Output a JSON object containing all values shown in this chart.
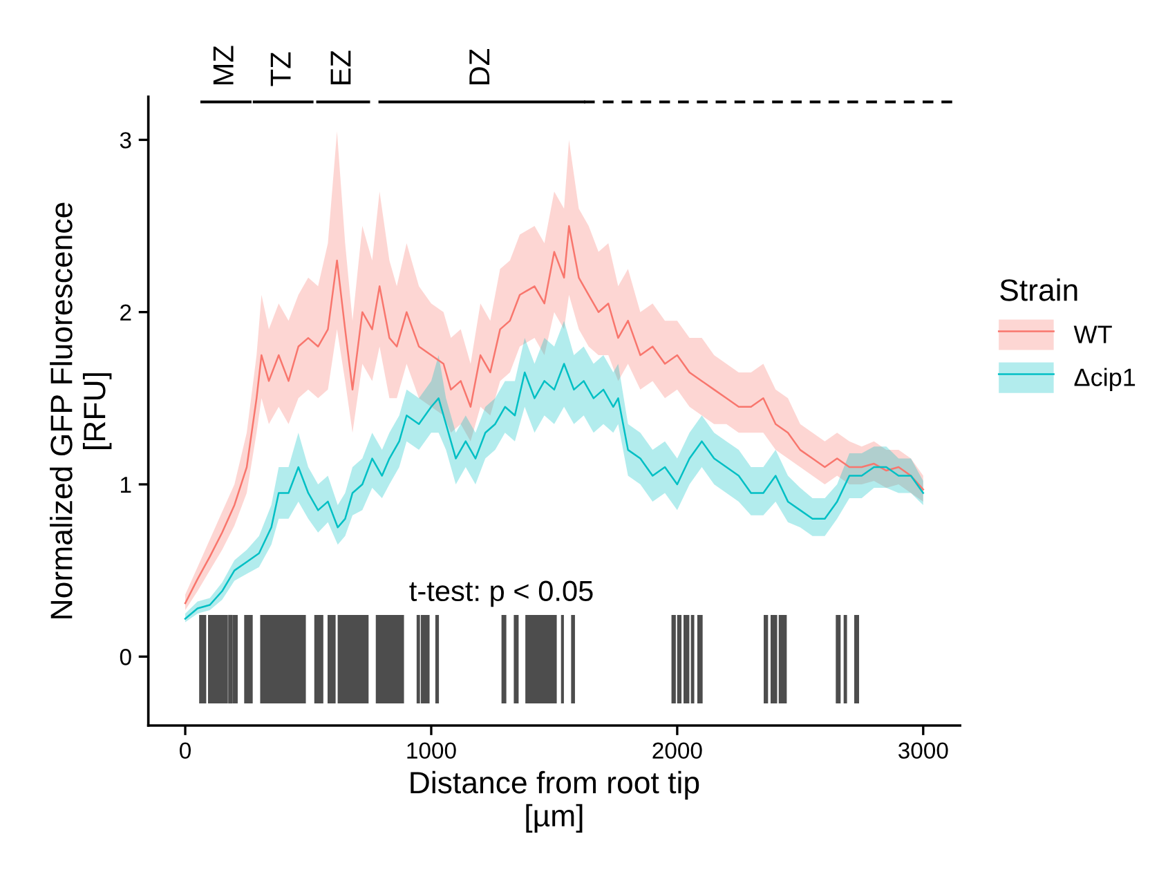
{
  "chart_data": {
    "type": "line",
    "xlabel": "Distance from root tip\n[µm]",
    "ylabel": "Normalized GFP Fluorescence\n[RFU]",
    "legend_title": "Strain",
    "xlim": [
      -150,
      3150
    ],
    "ylim": [
      -0.4,
      3.25
    ],
    "xticks": [
      0,
      1000,
      2000,
      3000
    ],
    "yticks": [
      0,
      1,
      2,
      3
    ],
    "grid": false,
    "legend": "right",
    "series": [
      {
        "name": "WT",
        "color": "#f8766d",
        "x": [
          0,
          50,
          100,
          150,
          200,
          250,
          290,
          310,
          340,
          380,
          420,
          460,
          500,
          540,
          580,
          617,
          650,
          680,
          720,
          760,
          790,
          830,
          860,
          900,
          950,
          1000,
          1050,
          1080,
          1120,
          1160,
          1200,
          1240,
          1280,
          1320,
          1360,
          1420,
          1460,
          1500,
          1540,
          1560,
          1600,
          1640,
          1680,
          1720,
          1760,
          1800,
          1850,
          1900,
          1950,
          2000,
          2050,
          2100,
          2150,
          2200,
          2250,
          2300,
          2350,
          2400,
          2450,
          2500,
          2550,
          2600,
          2650,
          2700,
          2750,
          2800,
          2850,
          2900,
          2950,
          3000
        ],
        "values": [
          0.31,
          0.45,
          0.58,
          0.72,
          0.88,
          1.1,
          1.5,
          1.75,
          1.6,
          1.75,
          1.6,
          1.8,
          1.85,
          1.8,
          1.9,
          2.3,
          1.9,
          1.55,
          2.0,
          1.9,
          2.15,
          1.85,
          1.8,
          2.0,
          1.8,
          1.75,
          1.7,
          1.55,
          1.6,
          1.45,
          1.75,
          1.65,
          1.9,
          1.95,
          2.1,
          2.15,
          2.05,
          2.35,
          2.2,
          2.5,
          2.2,
          2.1,
          2.0,
          2.05,
          1.85,
          1.95,
          1.75,
          1.8,
          1.7,
          1.75,
          1.65,
          1.6,
          1.55,
          1.5,
          1.45,
          1.45,
          1.5,
          1.35,
          1.3,
          1.2,
          1.15,
          1.1,
          1.15,
          1.1,
          1.1,
          1.12,
          1.08,
          1.1,
          1.05,
          0.97
        ],
        "lower": [
          0.27,
          0.38,
          0.5,
          0.62,
          0.76,
          0.95,
          1.3,
          1.5,
          1.35,
          1.45,
          1.35,
          1.5,
          1.55,
          1.5,
          1.55,
          1.9,
          1.6,
          1.3,
          1.7,
          1.6,
          1.8,
          1.5,
          1.5,
          1.7,
          1.5,
          1.45,
          1.4,
          1.3,
          1.35,
          1.25,
          1.45,
          1.4,
          1.6,
          1.65,
          1.8,
          1.85,
          1.75,
          2.0,
          1.9,
          2.1,
          1.9,
          1.8,
          1.75,
          1.75,
          1.6,
          1.7,
          1.55,
          1.6,
          1.5,
          1.55,
          1.45,
          1.4,
          1.35,
          1.35,
          1.3,
          1.3,
          1.3,
          1.2,
          1.15,
          1.1,
          1.05,
          1.0,
          1.05,
          1.0,
          1.0,
          1.02,
          0.98,
          1.0,
          0.95,
          0.9
        ],
        "upper": [
          0.36,
          0.52,
          0.68,
          0.84,
          1.0,
          1.3,
          1.75,
          2.1,
          1.9,
          2.05,
          1.95,
          2.1,
          2.2,
          2.15,
          2.4,
          3.05,
          2.4,
          1.95,
          2.5,
          2.3,
          2.7,
          2.3,
          2.15,
          2.4,
          2.15,
          2.05,
          2.0,
          1.85,
          1.9,
          1.7,
          2.05,
          1.95,
          2.25,
          2.3,
          2.45,
          2.5,
          2.4,
          2.7,
          2.6,
          3.0,
          2.6,
          2.5,
          2.35,
          2.4,
          2.15,
          2.25,
          2.0,
          2.05,
          1.95,
          1.95,
          1.85,
          1.85,
          1.75,
          1.7,
          1.65,
          1.65,
          1.7,
          1.55,
          1.5,
          1.35,
          1.3,
          1.25,
          1.3,
          1.25,
          1.22,
          1.25,
          1.2,
          1.2,
          1.15,
          1.05
        ]
      },
      {
        "name": "Δcip1",
        "color": "#00bfc4",
        "x": [
          0,
          50,
          100,
          150,
          200,
          250,
          300,
          350,
          380,
          420,
          460,
          500,
          540,
          580,
          620,
          650,
          680,
          720,
          760,
          800,
          830,
          870,
          900,
          950,
          1000,
          1030,
          1060,
          1100,
          1140,
          1180,
          1220,
          1260,
          1300,
          1340,
          1380,
          1420,
          1460,
          1500,
          1540,
          1580,
          1620,
          1660,
          1700,
          1740,
          1760,
          1800,
          1850,
          1900,
          1950,
          2000,
          2050,
          2100,
          2150,
          2200,
          2250,
          2300,
          2350,
          2400,
          2450,
          2500,
          2550,
          2600,
          2650,
          2700,
          2750,
          2800,
          2850,
          2900,
          2950,
          3000
        ],
        "values": [
          0.22,
          0.28,
          0.3,
          0.38,
          0.5,
          0.55,
          0.6,
          0.75,
          0.95,
          0.95,
          1.1,
          0.95,
          0.85,
          0.9,
          0.75,
          0.8,
          0.95,
          1.0,
          1.15,
          1.05,
          1.15,
          1.25,
          1.4,
          1.35,
          1.45,
          1.5,
          1.35,
          1.15,
          1.25,
          1.15,
          1.3,
          1.35,
          1.45,
          1.4,
          1.65,
          1.5,
          1.6,
          1.55,
          1.7,
          1.55,
          1.6,
          1.5,
          1.55,
          1.45,
          1.5,
          1.2,
          1.15,
          1.05,
          1.1,
          1.0,
          1.15,
          1.25,
          1.15,
          1.1,
          1.05,
          0.95,
          0.95,
          1.05,
          0.9,
          0.85,
          0.8,
          0.8,
          0.9,
          1.05,
          1.05,
          1.1,
          1.1,
          1.05,
          1.05,
          0.95
        ],
        "lower": [
          0.2,
          0.25,
          0.27,
          0.33,
          0.44,
          0.48,
          0.52,
          0.65,
          0.8,
          0.8,
          0.9,
          0.8,
          0.72,
          0.78,
          0.65,
          0.7,
          0.82,
          0.85,
          0.98,
          0.92,
          1.0,
          1.1,
          1.25,
          1.2,
          1.3,
          1.3,
          1.2,
          1.0,
          1.1,
          1.0,
          1.15,
          1.2,
          1.3,
          1.25,
          1.45,
          1.3,
          1.4,
          1.35,
          1.45,
          1.35,
          1.4,
          1.3,
          1.35,
          1.3,
          1.35,
          1.05,
          1.0,
          0.9,
          0.95,
          0.85,
          1.0,
          1.1,
          1.0,
          0.95,
          0.9,
          0.82,
          0.82,
          0.9,
          0.78,
          0.75,
          0.7,
          0.7,
          0.8,
          0.92,
          0.92,
          0.98,
          0.98,
          0.95,
          0.95,
          0.88
        ],
        "upper": [
          0.25,
          0.32,
          0.34,
          0.43,
          0.56,
          0.62,
          0.7,
          0.88,
          1.1,
          1.1,
          1.3,
          1.1,
          1.0,
          1.05,
          0.88,
          0.95,
          1.1,
          1.15,
          1.3,
          1.2,
          1.3,
          1.4,
          1.55,
          1.5,
          1.6,
          1.75,
          1.5,
          1.3,
          1.4,
          1.3,
          1.45,
          1.5,
          1.6,
          1.6,
          1.85,
          1.7,
          1.85,
          1.8,
          1.95,
          1.75,
          1.8,
          1.7,
          1.75,
          1.65,
          1.7,
          1.35,
          1.3,
          1.2,
          1.25,
          1.15,
          1.3,
          1.4,
          1.3,
          1.25,
          1.2,
          1.1,
          1.1,
          1.2,
          1.05,
          0.98,
          0.92,
          0.92,
          1.0,
          1.18,
          1.18,
          1.22,
          1.22,
          1.15,
          1.15,
          1.02
        ]
      },
      {
        "type": "line",
        "color": "#000000",
        "line_style": "solid",
        "x": [
          67,
          264
        ],
        "values": [
          3.22,
          3.22
        ]
      },
      {
        "type": "line",
        "color": "#000000",
        "line_style": "solid",
        "x": [
          280,
          516
        ],
        "values": [
          3.22,
          3.22
        ]
      },
      {
        "type": "line",
        "color": "#000000",
        "line_style": "solid",
        "x": [
          538,
          746
        ],
        "values": [
          3.22,
          3.22
        ]
      },
      {
        "type": "line",
        "color": "#000000",
        "line_style": "solid",
        "x": [
          791,
          1621
        ],
        "values": [
          3.22,
          3.22
        ]
      },
      {
        "type": "line",
        "color": "#000000",
        "line_style": "dashed",
        "x": [
          1621,
          3150
        ],
        "values": [
          3.22,
          3.22
        ]
      }
    ],
    "annotations": [
      {
        "text": "MZ",
        "x": 165,
        "y": 3.22
      },
      {
        "text": "TZ",
        "x": 398,
        "y": 3.22
      },
      {
        "text": "EZ",
        "x": 642,
        "y": 3.22
      },
      {
        "text": "DZ",
        "x": 1206,
        "y": 3.22
      },
      "t-test: p < 0.05"
    ],
    "bands": [
      {
        "axis": "x",
        "from": 59,
        "to": 83,
        "color": "#4d4d4d"
      },
      {
        "axis": "x",
        "from": 95,
        "to": 171,
        "color": "#4d4d4d"
      },
      {
        "axis": "x",
        "from": 177,
        "to": 181,
        "color": "#4d4d4d"
      },
      {
        "axis": "x",
        "from": 185,
        "to": 189,
        "color": "#4d4d4d"
      },
      {
        "axis": "x",
        "from": 194,
        "to": 211,
        "color": "#4d4d4d"
      },
      {
        "axis": "x",
        "from": 242,
        "to": 272,
        "color": "#4d4d4d"
      },
      {
        "axis": "x",
        "from": 307,
        "to": 488,
        "color": "#4d4d4d"
      },
      {
        "axis": "x",
        "from": 527,
        "to": 559,
        "color": "#4d4d4d"
      },
      {
        "axis": "x",
        "from": 581,
        "to": 609,
        "color": "#4d4d4d"
      },
      {
        "axis": "x",
        "from": 622,
        "to": 743,
        "color": "#4d4d4d"
      },
      {
        "axis": "x",
        "from": 777,
        "to": 887,
        "color": "#4d4d4d"
      },
      {
        "axis": "x",
        "from": 943,
        "to": 952,
        "color": "#4d4d4d"
      },
      {
        "axis": "x",
        "from": 960,
        "to": 991,
        "color": "#4d4d4d"
      },
      {
        "axis": "x",
        "from": 1019,
        "to": 1029,
        "color": "#4d4d4d"
      },
      {
        "axis": "x",
        "from": 1288,
        "to": 1303,
        "color": "#4d4d4d"
      },
      {
        "axis": "x",
        "from": 1338,
        "to": 1353,
        "color": "#4d4d4d"
      },
      {
        "axis": "x",
        "from": 1385,
        "to": 1508,
        "color": "#4d4d4d"
      },
      {
        "axis": "x",
        "from": 1530,
        "to": 1537,
        "color": "#4d4d4d"
      },
      {
        "axis": "x",
        "from": 1571,
        "to": 1582,
        "color": "#4d4d4d"
      },
      {
        "axis": "x",
        "from": 1979,
        "to": 1992,
        "color": "#4d4d4d"
      },
      {
        "axis": "x",
        "from": 2002,
        "to": 2015,
        "color": "#4d4d4d"
      },
      {
        "axis": "x",
        "from": 2028,
        "to": 2047,
        "color": "#4d4d4d"
      },
      {
        "axis": "x",
        "from": 2058,
        "to": 2067,
        "color": "#4d4d4d"
      },
      {
        "axis": "x",
        "from": 2084,
        "to": 2101,
        "color": "#4d4d4d"
      },
      {
        "axis": "x",
        "from": 2354,
        "to": 2367,
        "color": "#4d4d4d"
      },
      {
        "axis": "x",
        "from": 2382,
        "to": 2404,
        "color": "#4d4d4d"
      },
      {
        "axis": "x",
        "from": 2415,
        "to": 2443,
        "color": "#4d4d4d"
      },
      {
        "axis": "x",
        "from": 2647,
        "to": 2662,
        "color": "#4d4d4d"
      },
      {
        "axis": "x",
        "from": 2679,
        "to": 2688,
        "color": "#4d4d4d"
      },
      {
        "axis": "x",
        "from": 2722,
        "to": 2737,
        "color": "#4d4d4d"
      }
    ]
  }
}
